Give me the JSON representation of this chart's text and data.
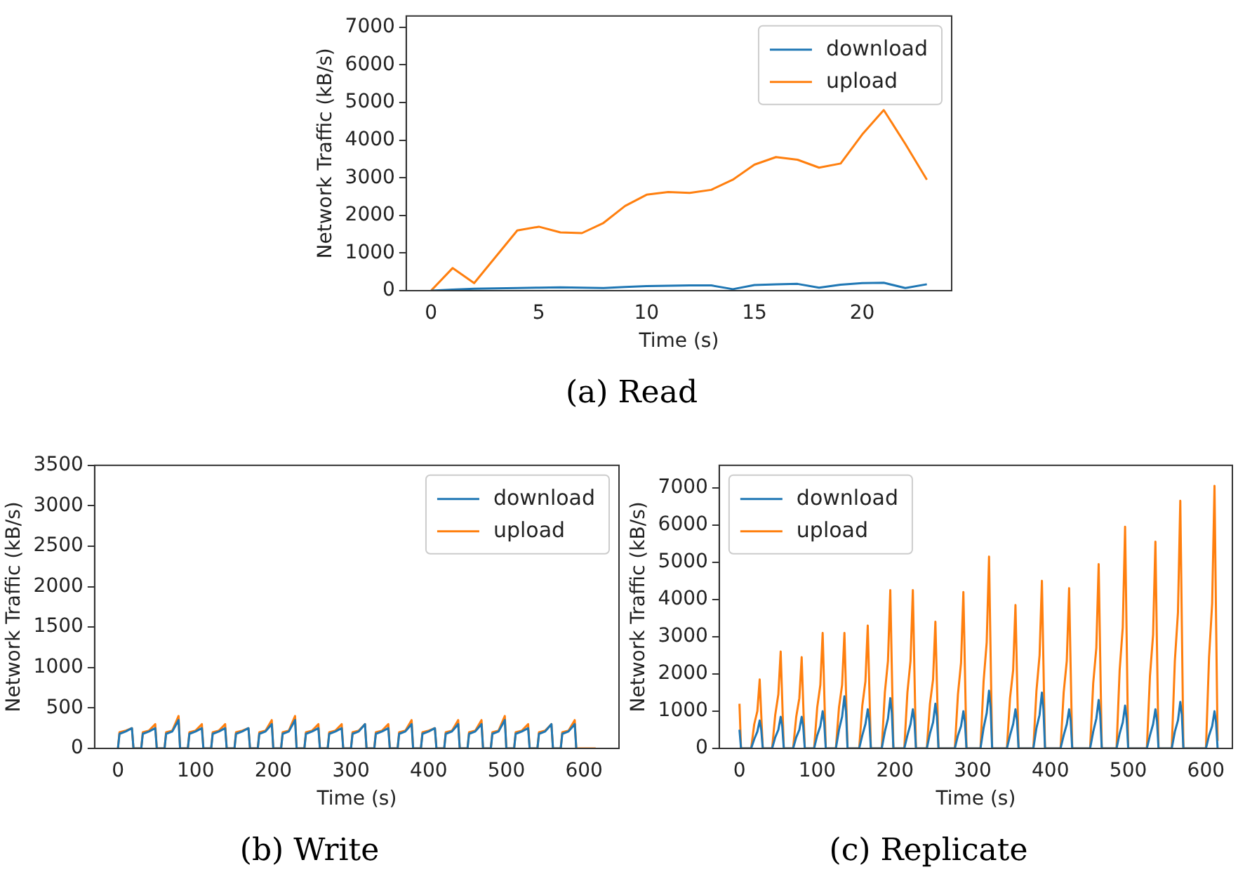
{
  "chart_data": [
    {
      "type": "line",
      "title": "(a) Read",
      "xlabel": "Time (s)",
      "ylabel": "Network Traffic (kB/s)",
      "x": [
        0,
        1,
        2,
        3,
        4,
        5,
        6,
        7,
        8,
        9,
        10,
        11,
        12,
        13,
        14,
        15,
        16,
        17,
        18,
        19,
        20,
        21,
        22,
        23
      ],
      "xlim": [
        -1.15,
        24.15
      ],
      "xticks": [
        0,
        5,
        10,
        15,
        20
      ],
      "ylim": [
        0,
        7300
      ],
      "yticks": [
        0,
        1000,
        2000,
        3000,
        4000,
        5000,
        6000,
        7000
      ],
      "grid": false,
      "legend": "top right",
      "series": [
        {
          "name": "download",
          "color": "#1f77b4",
          "values": [
            0,
            30,
            50,
            60,
            70,
            80,
            90,
            80,
            70,
            100,
            120,
            130,
            140,
            140,
            40,
            150,
            170,
            180,
            80,
            160,
            200,
            210,
            70,
            170
          ]
        },
        {
          "name": "upload",
          "color": "#ff7f0e",
          "values": [
            0,
            600,
            200,
            900,
            1600,
            1700,
            1550,
            1530,
            1800,
            2250,
            2550,
            2620,
            2600,
            2680,
            2950,
            3350,
            3550,
            3480,
            3270,
            3380,
            4150,
            4800,
            3900,
            2950
          ]
        }
      ]
    },
    {
      "type": "line",
      "title": "(b) Write",
      "xlabel": "Time (s)",
      "ylabel": "Network Traffic (kB/s)",
      "x": [
        0,
        2,
        10,
        18,
        20,
        30,
        32,
        40,
        48,
        50,
        60,
        62,
        70,
        78,
        80,
        90,
        92,
        100,
        108,
        110,
        120,
        122,
        130,
        138,
        140,
        150,
        152,
        160,
        168,
        170,
        180,
        182,
        190,
        198,
        200,
        210,
        212,
        220,
        228,
        230,
        240,
        242,
        250,
        258,
        260,
        270,
        272,
        280,
        288,
        290,
        300,
        302,
        310,
        318,
        320,
        330,
        332,
        340,
        348,
        350,
        360,
        362,
        370,
        378,
        380,
        390,
        392,
        400,
        408,
        410,
        420,
        422,
        430,
        438,
        440,
        450,
        452,
        460,
        468,
        470,
        480,
        482,
        490,
        498,
        500,
        510,
        512,
        520,
        528,
        530,
        540,
        542,
        550,
        558,
        560,
        570,
        572,
        580,
        588,
        590,
        615
      ],
      "xlim": [
        -30,
        645
      ],
      "xticks": [
        0,
        100,
        200,
        300,
        400,
        500,
        600
      ],
      "ylim": [
        0,
        3500
      ],
      "yticks": [
        0,
        500,
        1000,
        1500,
        2000,
        2500,
        3000,
        3500
      ],
      "grid": false,
      "legend": "top right",
      "series": [
        {
          "name": "download",
          "color": "#1f77b4",
          "values": [
            0,
            180,
            210,
            250,
            0,
            0,
            180,
            210,
            250,
            0,
            0,
            180,
            210,
            350,
            0,
            0,
            180,
            210,
            250,
            0,
            0,
            180,
            210,
            250,
            0,
            0,
            180,
            210,
            250,
            0,
            0,
            180,
            210,
            300,
            0,
            0,
            180,
            210,
            350,
            0,
            0,
            180,
            210,
            250,
            0,
            0,
            180,
            210,
            250,
            0,
            0,
            180,
            210,
            300,
            0,
            0,
            180,
            210,
            250,
            0,
            0,
            180,
            210,
            300,
            0,
            0,
            180,
            210,
            250,
            0,
            0,
            180,
            210,
            300,
            0,
            0,
            180,
            210,
            300,
            0,
            0,
            180,
            210,
            350,
            0,
            0,
            180,
            210,
            250,
            0,
            0,
            180,
            210,
            300,
            0,
            0,
            180,
            210,
            300,
            0,
            null
          ]
        },
        {
          "name": "upload",
          "color": "#ff7f0e",
          "values": [
            0,
            200,
            220,
            250,
            0,
            0,
            200,
            220,
            300,
            0,
            0,
            200,
            220,
            400,
            0,
            0,
            200,
            220,
            300,
            0,
            0,
            200,
            220,
            300,
            0,
            0,
            200,
            220,
            250,
            0,
            0,
            200,
            220,
            350,
            0,
            0,
            200,
            220,
            400,
            0,
            0,
            200,
            220,
            300,
            0,
            0,
            200,
            220,
            300,
            0,
            0,
            200,
            220,
            300,
            0,
            0,
            200,
            220,
            300,
            0,
            0,
            200,
            220,
            350,
            0,
            0,
            200,
            220,
            250,
            0,
            0,
            200,
            220,
            350,
            0,
            0,
            200,
            220,
            350,
            0,
            0,
            200,
            220,
            400,
            0,
            0,
            200,
            220,
            300,
            0,
            0,
            200,
            220,
            300,
            0,
            0,
            200,
            220,
            350,
            0,
            0
          ]
        }
      ]
    },
    {
      "type": "line",
      "title": "(c) Replicate",
      "xlabel": "Time (s)",
      "ylabel": "Network Traffic (kB/s)",
      "x": [
        0,
        2,
        15,
        19,
        23,
        26,
        28,
        30,
        42,
        46,
        50,
        53,
        55,
        57,
        69,
        73,
        77,
        80,
        82,
        84,
        96,
        100,
        104,
        107,
        109,
        111,
        124,
        128,
        132,
        135,
        137,
        139,
        154,
        158,
        162,
        165,
        167,
        169,
        183,
        187,
        191,
        194,
        196,
        198,
        212,
        216,
        220,
        223,
        225,
        227,
        241,
        245,
        249,
        252,
        254,
        256,
        277,
        281,
        285,
        288,
        290,
        292,
        310,
        314,
        318,
        321,
        323,
        325,
        344,
        348,
        352,
        355,
        357,
        359,
        378,
        382,
        386,
        389,
        391,
        393,
        413,
        417,
        421,
        424,
        426,
        428,
        451,
        455,
        459,
        462,
        464,
        466,
        485,
        489,
        493,
        496,
        498,
        500,
        524,
        528,
        532,
        535,
        537,
        539,
        556,
        560,
        564,
        567,
        569,
        571,
        600,
        604,
        608,
        611,
        613,
        615
      ],
      "xlim": [
        -26,
        634
      ],
      "xticks": [
        0,
        100,
        200,
        300,
        400,
        500,
        600
      ],
      "ylim": [
        0,
        7600
      ],
      "yticks": [
        0,
        1000,
        2000,
        3000,
        4000,
        5000,
        6000,
        7000
      ],
      "grid": false,
      "legend": "top left",
      "series": [
        {
          "name": "download",
          "color": "#1f77b4",
          "values": [
            500,
            0,
            0,
            250,
            450,
            750,
            500,
            0,
            0,
            300,
            500,
            850,
            600,
            0,
            0,
            300,
            500,
            850,
            600,
            0,
            0,
            350,
            600,
            1000,
            700,
            0,
            0,
            500,
            850,
            1400,
            1000,
            0,
            0,
            350,
            650,
            1050,
            750,
            0,
            0,
            450,
            800,
            1350,
            950,
            0,
            0,
            350,
            650,
            1050,
            750,
            0,
            0,
            400,
            700,
            1200,
            850,
            0,
            0,
            350,
            600,
            1000,
            700,
            0,
            0,
            550,
            950,
            1550,
            1100,
            0,
            0,
            350,
            650,
            1050,
            750,
            0,
            0,
            550,
            900,
            1500,
            1050,
            0,
            0,
            350,
            650,
            1050,
            750,
            0,
            0,
            450,
            800,
            1300,
            900,
            0,
            0,
            400,
            700,
            1150,
            800,
            0,
            0,
            350,
            650,
            1050,
            750,
            0,
            0,
            450,
            750,
            1250,
            900,
            0,
            0,
            350,
            600,
            1000,
            700,
            0
          ]
        },
        {
          "name": "upload",
          "color": "#ff7f0e",
          "values": [
            1200,
            0,
            0,
            650,
            1000,
            1850,
            900,
            0,
            0,
            900,
            1450,
            2600,
            1300,
            0,
            0,
            850,
            1350,
            2450,
            1200,
            0,
            0,
            1100,
            1700,
            3100,
            1550,
            0,
            0,
            1100,
            1700,
            3100,
            1550,
            0,
            0,
            1150,
            1800,
            3300,
            1650,
            0,
            0,
            1500,
            2350,
            4250,
            2100,
            0,
            0,
            1500,
            2350,
            4250,
            2100,
            0,
            0,
            1200,
            1850,
            3400,
            1700,
            0,
            0,
            1450,
            2300,
            4200,
            2100,
            0,
            0,
            1800,
            2850,
            5150,
            2550,
            0,
            0,
            1350,
            2100,
            3850,
            1900,
            0,
            0,
            1550,
            2500,
            4500,
            2250,
            0,
            0,
            1500,
            2350,
            4300,
            2150,
            0,
            0,
            1750,
            2700,
            4950,
            2450,
            0,
            0,
            2100,
            3250,
            5950,
            3000,
            0,
            0,
            1950,
            3050,
            5550,
            2750,
            0,
            0,
            2350,
            3650,
            6650,
            3300,
            0,
            0,
            2450,
            3900,
            7050,
            3500,
            200
          ]
        }
      ]
    }
  ]
}
